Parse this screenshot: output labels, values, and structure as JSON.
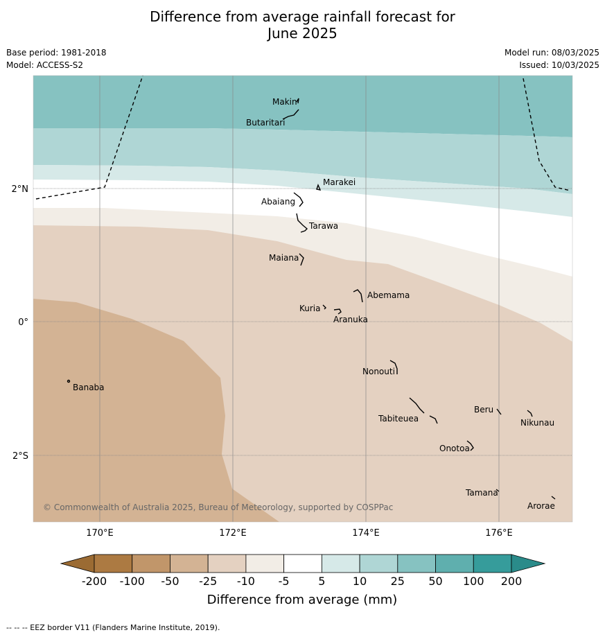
{
  "title_line1": "Difference from average rainfall forecast for",
  "title_line2": "June 2025",
  "base_period": "Base period: 1981-2018",
  "model": "Model: ACCESS-S2",
  "model_run": "Model run: 08/03/2025",
  "issued": "Issued: 10/03/2025",
  "copyright": "© Commonwealth of Australia 2025, Bureau of Meteorology, supported by COSPPac",
  "footnote": "--  --  -- EEZ border V11 (Flanders Marine Institute, 2019).",
  "axes": {
    "lon_ticks": [
      "170°E",
      "172°E",
      "174°E",
      "176°E"
    ],
    "lat_ticks": [
      "2°N",
      "0°",
      "2°S"
    ]
  },
  "places": [
    "Makin",
    "Butaritari",
    "Marakei",
    "Abaiang",
    "Tarawa",
    "Maiana",
    "Abemama",
    "Kuria",
    "Aranuka",
    "Nonouti",
    "Banaba",
    "Beru",
    "Nikunau",
    "Tabiteuea",
    "Onotoa",
    "Tamana",
    "Arorae"
  ],
  "colorbar": {
    "title": "Difference from average (mm)",
    "ticks": [
      "-200",
      "-100",
      "-50",
      "-25",
      "-10",
      "-5",
      "5",
      "10",
      "25",
      "50",
      "100",
      "200"
    ],
    "colors": [
      "#ac7a42",
      "#c1966a",
      "#d3b394",
      "#e4d1c1",
      "#f2ede6",
      "#ffffff",
      "#d6e9e8",
      "#afd6d5",
      "#86c2c1",
      "#5fafae",
      "#369c9b"
    ],
    "under_color": "#9b6b33",
    "over_color": "#2a8b8a"
  }
}
